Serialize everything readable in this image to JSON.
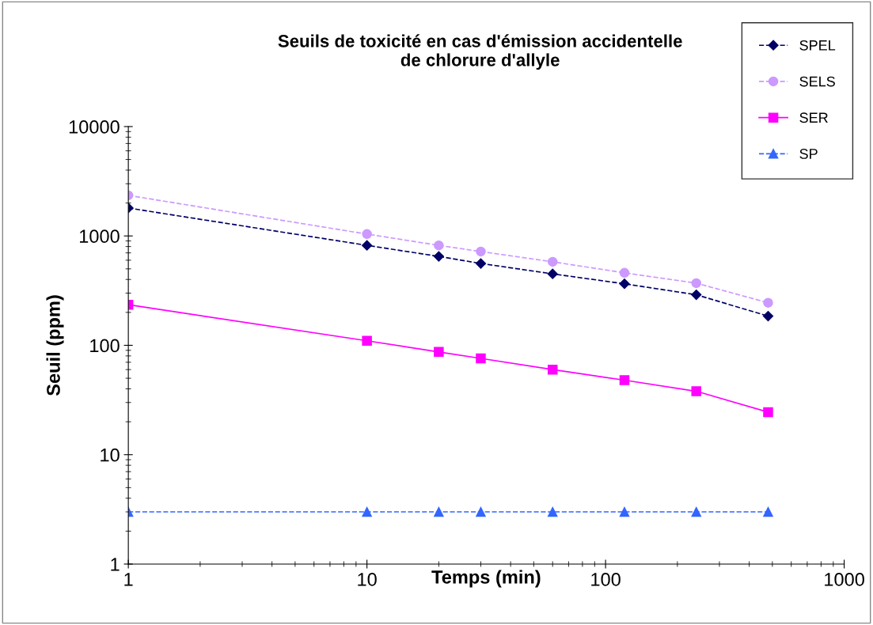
{
  "chart_data": {
    "type": "line",
    "title": "Seuils de toxicité en cas d'émission accidentelle\nde chlorure d'allyle",
    "xlabel": "Temps (min)",
    "ylabel": "Seuil (ppm)",
    "x": [
      1,
      10,
      20,
      30,
      60,
      120,
      240,
      480
    ],
    "series": [
      {
        "name": "SPEL",
        "color": "#000066",
        "marker": "diamond",
        "line_style": "dashed",
        "values": [
          1800,
          820,
          650,
          560,
          450,
          365,
          290,
          185
        ]
      },
      {
        "name": "SELS",
        "color": "#cc99ff",
        "marker": "circle",
        "line_style": "dashed",
        "values": [
          2350,
          1040,
          820,
          720,
          580,
          460,
          370,
          245
        ]
      },
      {
        "name": "SER",
        "color": "#ff00ff",
        "marker": "square",
        "line_style": "solid",
        "values": [
          235,
          110,
          87,
          76,
          60,
          48,
          38,
          24.5
        ]
      },
      {
        "name": "SP",
        "color": "#3366ff",
        "marker": "triangle",
        "line_style": "dashed",
        "values": [
          3,
          3,
          3,
          3,
          3,
          3,
          3,
          3
        ]
      }
    ],
    "log": "xy",
    "xlim": [
      1,
      1000
    ],
    "xticks": [
      1,
      10,
      100,
      1000
    ],
    "ylim": [
      1,
      10000
    ],
    "yticks": [
      1,
      10,
      100,
      1000,
      10000
    ],
    "grid": false,
    "legend": "top right"
  }
}
